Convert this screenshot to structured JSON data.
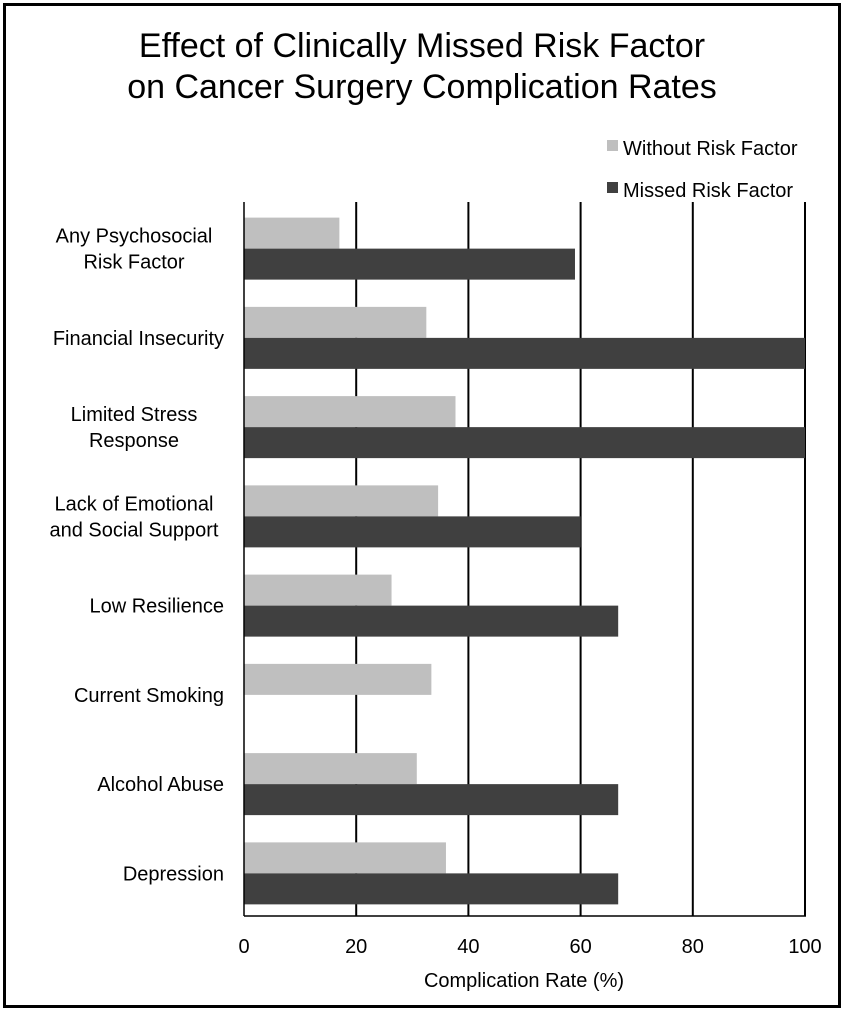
{
  "chart_data": {
    "type": "bar",
    "orientation": "horizontal",
    "title_lines": [
      "Effect of Clinically Missed Risk Factor",
      "on Cancer Surgery Complication Rates"
    ],
    "xlabel": "Complication Rate (%)",
    "ylabel": "",
    "xlim": [
      0,
      100
    ],
    "xticks": [
      "0",
      "20",
      "40",
      "60",
      "80",
      "100"
    ],
    "grid": "vertical",
    "legend_position": "top-right",
    "categories": [
      [
        "Any Psychosocial",
        "Risk Factor"
      ],
      [
        "Financial Insecurity"
      ],
      [
        "Limited Stress",
        "Response"
      ],
      [
        "Lack of Emotional",
        "and Social Support"
      ],
      [
        "Low Resilience"
      ],
      [
        "Current Smoking"
      ],
      [
        "Alcohol Abuse"
      ],
      [
        "Depression"
      ]
    ],
    "series": [
      {
        "name": "Without Risk Factor",
        "color": "#bfbfbf",
        "values": [
          17,
          32.5,
          37.7,
          34.6,
          26.3,
          33.4,
          30.8,
          36
        ]
      },
      {
        "name": "Missed Risk Factor",
        "color": "#404040",
        "values": [
          59,
          100,
          100,
          60,
          66.7,
          0,
          66.7,
          66.7
        ]
      }
    ]
  }
}
